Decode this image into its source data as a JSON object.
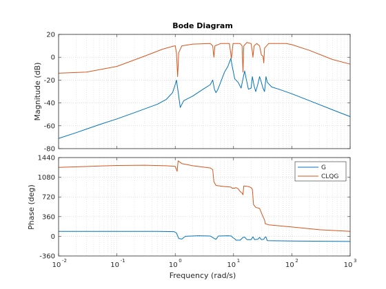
{
  "chart_data": {
    "type": "line",
    "title": "Bode Diagram",
    "xlabel": "Frequency  (rad/s)",
    "xscale": "log",
    "xlim": [
      0.01,
      1000
    ],
    "x_ticks": [
      "10",
      "10",
      "10",
      "10",
      "10",
      "10"
    ],
    "x_tick_exponents": [
      "-2",
      "-1",
      "0",
      "1",
      "2",
      "3"
    ],
    "x_tick_values": [
      0.01,
      0.1,
      1,
      10,
      100,
      1000
    ],
    "colors": {
      "G": "#0072BD",
      "CLQG": "#D95319"
    },
    "legend": {
      "placement": "top-right",
      "entries": [
        "G",
        "CLQG"
      ]
    },
    "grid": true,
    "panels": [
      {
        "name": "magnitude",
        "ylabel": "Magnitude (dB)",
        "ylim": [
          -80,
          20
        ],
        "y_ticks": [
          20,
          0,
          -20,
          -40,
          -60,
          -80
        ],
        "series": [
          {
            "name": "G",
            "points": [
              [
                0.01,
                -71
              ],
              [
                0.02,
                -66
              ],
              [
                0.05,
                -59
              ],
              [
                0.1,
                -54
              ],
              [
                0.2,
                -48.5
              ],
              [
                0.5,
                -41
              ],
              [
                0.7,
                -37
              ],
              [
                0.9,
                -31
              ],
              [
                1.0,
                -24
              ],
              [
                1.05,
                -20
              ],
              [
                1.12,
                -30
              ],
              [
                1.22,
                -44
              ],
              [
                1.4,
                -38
              ],
              [
                2,
                -34
              ],
              [
                3,
                -28
              ],
              [
                4,
                -24
              ],
              [
                4.4,
                -20
              ],
              [
                4.7,
                -28
              ],
              [
                5.0,
                -31
              ],
              [
                5.4,
                -28
              ],
              [
                6,
                -22
              ],
              [
                7,
                -13
              ],
              [
                8,
                -8
              ],
              [
                9,
                -1
              ],
              [
                9.5,
                -8
              ],
              [
                10.5,
                -19
              ],
              [
                12,
                -22
              ],
              [
                13.5,
                -27
              ],
              [
                14.5,
                -19
              ],
              [
                15.5,
                -12
              ],
              [
                16.5,
                -19
              ],
              [
                18,
                -28
              ],
              [
                20,
                -27
              ],
              [
                21,
                -17
              ],
              [
                22.5,
                -25
              ],
              [
                24,
                -30
              ],
              [
                26,
                -24
              ],
              [
                28,
                -17
              ],
              [
                30,
                -22
              ],
              [
                32,
                -27
              ],
              [
                34,
                -30
              ],
              [
                36,
                -17
              ],
              [
                38,
                -22
              ],
              [
                45,
                -26
              ],
              [
                60,
                -28
              ],
              [
                100,
                -32
              ],
              [
                200,
                -38
              ],
              [
                500,
                -46
              ],
              [
                1000,
                -52
              ]
            ]
          },
          {
            "name": "CLQG",
            "points": [
              [
                0.01,
                -14
              ],
              [
                0.03,
                -13
              ],
              [
                0.1,
                -8
              ],
              [
                0.3,
                1
              ],
              [
                0.6,
                7
              ],
              [
                0.9,
                9.5
              ],
              [
                1.0,
                10
              ],
              [
                1.05,
                4
              ],
              [
                1.1,
                -17
              ],
              [
                1.15,
                4
              ],
              [
                1.3,
                10
              ],
              [
                2,
                11.5
              ],
              [
                4,
                12
              ],
              [
                4.4,
                10
              ],
              [
                4.6,
                0
              ],
              [
                4.8,
                10
              ],
              [
                6,
                12
              ],
              [
                8.5,
                12
              ],
              [
                9.2,
                -1
              ],
              [
                9.8,
                12
              ],
              [
                13,
                12
              ],
              [
                14,
                10
              ],
              [
                14.5,
                -13
              ],
              [
                15,
                10
              ],
              [
                17,
                13
              ],
              [
                20,
                12
              ],
              [
                21,
                5
              ],
              [
                21.5,
                0
              ],
              [
                22.5,
                10
              ],
              [
                25,
                12
              ],
              [
                28,
                10
              ],
              [
                30,
                2
              ],
              [
                32,
                1
              ],
              [
                33,
                -5
              ],
              [
                34,
                8
              ],
              [
                40,
                12
              ],
              [
                80,
                12
              ],
              [
                100,
                11
              ],
              [
                200,
                6
              ],
              [
                500,
                -2
              ],
              [
                1000,
                -6
              ]
            ]
          }
        ]
      },
      {
        "name": "phase",
        "ylabel": "Phase (deg)",
        "ylim": [
          -360,
          1440
        ],
        "y_ticks": [
          1440,
          1080,
          720,
          360,
          0,
          -360
        ],
        "series": [
          {
            "name": "G",
            "points": [
              [
                0.01,
                90
              ],
              [
                0.5,
                90
              ],
              [
                0.95,
                85
              ],
              [
                1.05,
                60
              ],
              [
                1.15,
                -40
              ],
              [
                1.3,
                -50
              ],
              [
                1.5,
                0
              ],
              [
                2.5,
                10
              ],
              [
                4,
                5
              ],
              [
                4.5,
                -30
              ],
              [
                5,
                -55
              ],
              [
                5.5,
                5
              ],
              [
                8,
                10
              ],
              [
                9.2,
                5
              ],
              [
                9.6,
                -20
              ],
              [
                10.5,
                -45
              ],
              [
                11,
                -70
              ],
              [
                13,
                -70
              ],
              [
                14.5,
                -20
              ],
              [
                15.5,
                -15
              ],
              [
                17,
                -60
              ],
              [
                20,
                -60
              ],
              [
                21.5,
                -10
              ],
              [
                23,
                -60
              ],
              [
                26,
                -55
              ],
              [
                28,
                -20
              ],
              [
                30,
                -60
              ],
              [
                33,
                -55
              ],
              [
                35,
                -10
              ],
              [
                36,
                -15
              ],
              [
                38,
                -80
              ],
              [
                100,
                -85
              ],
              [
                1000,
                -95
              ]
            ]
          },
          {
            "name": "CLQG",
            "points": [
              [
                0.01,
                1260
              ],
              [
                0.05,
                1285
              ],
              [
                0.1,
                1295
              ],
              [
                0.3,
                1300
              ],
              [
                0.7,
                1290
              ],
              [
                1.0,
                1280
              ],
              [
                1.08,
                1190
              ],
              [
                1.12,
                1380
              ],
              [
                1.3,
                1330
              ],
              [
                2,
                1290
              ],
              [
                4,
                1250
              ],
              [
                4.4,
                1220
              ],
              [
                4.6,
                1000
              ],
              [
                5,
                930
              ],
              [
                7,
                910
              ],
              [
                9,
                900
              ],
              [
                9.5,
                880
              ],
              [
                10.5,
                880
              ],
              [
                11,
                890
              ],
              [
                12,
                870
              ],
              [
                13,
                820
              ],
              [
                14,
                790
              ],
              [
                14.5,
                760
              ],
              [
                15,
                920
              ],
              [
                18,
                910
              ],
              [
                20,
                890
              ],
              [
                21,
                860
              ],
              [
                22,
                580
              ],
              [
                24,
                530
              ],
              [
                28,
                510
              ],
              [
                30,
                430
              ],
              [
                32,
                360
              ],
              [
                34,
                300
              ],
              [
                35,
                230
              ],
              [
                40,
                210
              ],
              [
                100,
                170
              ],
              [
                300,
                120
              ],
              [
                1000,
                90
              ]
            ]
          }
        ]
      }
    ]
  }
}
